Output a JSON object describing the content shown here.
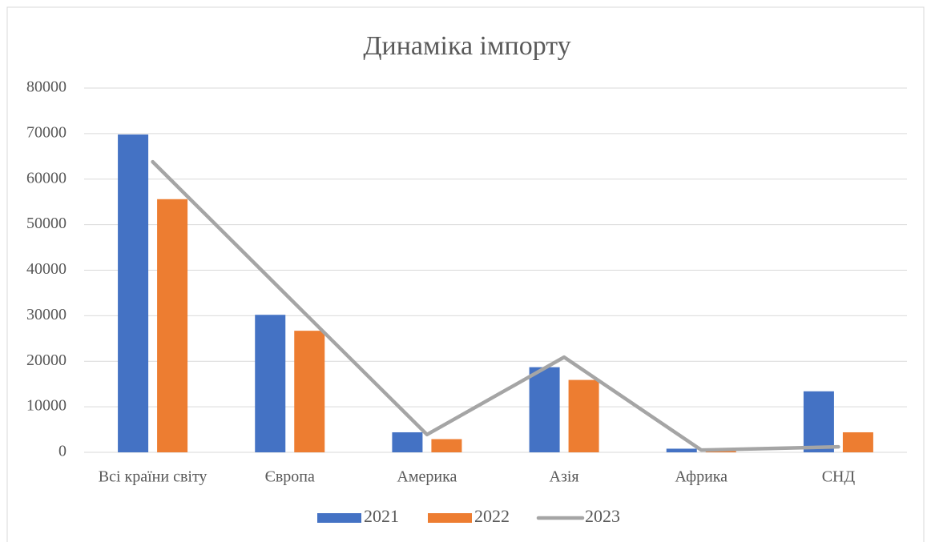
{
  "chart_data": {
    "type": "bar",
    "title": "Динаміка імпорту",
    "categories": [
      "Всі країни світу",
      "Європа",
      "Америка",
      "Азія",
      "Африка",
      "СНД"
    ],
    "series": [
      {
        "name": "2021",
        "color": "#4472c4",
        "type": "bar",
        "values": [
          69800,
          30200,
          4400,
          18700,
          800,
          13400
        ]
      },
      {
        "name": "2022",
        "color": "#ed7d31",
        "type": "bar",
        "values": [
          55600,
          26700,
          2900,
          15900,
          300,
          4400
        ]
      },
      {
        "name": "2023",
        "color": "#a5a5a5",
        "type": "line",
        "values": [
          63800,
          33800,
          3900,
          20900,
          500,
          1200
        ]
      }
    ],
    "ylim": [
      0,
      80000
    ],
    "yticks": [
      0,
      10000,
      20000,
      30000,
      40000,
      50000,
      60000,
      70000,
      80000
    ],
    "grid": true,
    "legend": "bottom"
  }
}
